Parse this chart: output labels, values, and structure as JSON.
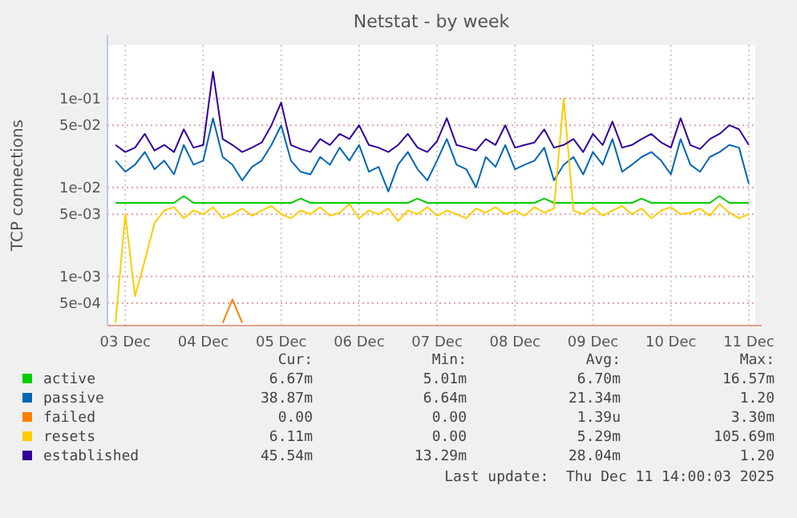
{
  "chart_data": {
    "type": "line",
    "title": "Netstat - by week",
    "ylabel": "TCP connections",
    "log": "y",
    "grid": true,
    "legend": "bottom",
    "marker": "none",
    "line_style": "solid",
    "ylim": [
      0.00028,
      0.4
    ],
    "yticks": [
      {
        "value": 0.0005,
        "label": "5e-04"
      },
      {
        "value": 0.001,
        "label": "1e-03"
      },
      {
        "value": 0.005,
        "label": "5e-03"
      },
      {
        "value": 0.01,
        "label": "1e-02"
      },
      {
        "value": 0.05,
        "label": "5e-02"
      },
      {
        "value": 0.1,
        "label": "1e-01"
      }
    ],
    "xlim": [
      "2025-12-03T06:30",
      "2025-12-11T14:00"
    ],
    "xticks": [
      {
        "value": "2025-12-03T12:00",
        "label": "03 Dec"
      },
      {
        "value": "2025-12-04T12:00",
        "label": "04 Dec"
      },
      {
        "value": "2025-12-05T12:00",
        "label": "05 Dec"
      },
      {
        "value": "2025-12-06T12:00",
        "label": "06 Dec"
      },
      {
        "value": "2025-12-07T12:00",
        "label": "07 Dec"
      },
      {
        "value": "2025-12-08T12:00",
        "label": "08 Dec"
      },
      {
        "value": "2025-12-09T12:00",
        "label": "09 Dec"
      },
      {
        "value": "2025-12-10T12:00",
        "label": "10 Dec"
      },
      {
        "value": "2025-12-11T12:00",
        "label": "11 Dec"
      }
    ],
    "x": [
      "2025-12-03T09:00",
      "2025-12-03T12:00",
      "2025-12-03T15:00",
      "2025-12-03T18:00",
      "2025-12-03T21:00",
      "2025-12-04T00:00",
      "2025-12-04T03:00",
      "2025-12-04T06:00",
      "2025-12-04T09:00",
      "2025-12-04T12:00",
      "2025-12-04T15:00",
      "2025-12-04T18:00",
      "2025-12-04T21:00",
      "2025-12-05T00:00",
      "2025-12-05T03:00",
      "2025-12-05T06:00",
      "2025-12-05T09:00",
      "2025-12-05T12:00",
      "2025-12-05T15:00",
      "2025-12-05T18:00",
      "2025-12-05T21:00",
      "2025-12-06T00:00",
      "2025-12-06T03:00",
      "2025-12-06T06:00",
      "2025-12-06T09:00",
      "2025-12-06T12:00",
      "2025-12-06T15:00",
      "2025-12-06T18:00",
      "2025-12-06T21:00",
      "2025-12-07T00:00",
      "2025-12-07T03:00",
      "2025-12-07T06:00",
      "2025-12-07T09:00",
      "2025-12-07T12:00",
      "2025-12-07T15:00",
      "2025-12-07T18:00",
      "2025-12-07T21:00",
      "2025-12-08T00:00",
      "2025-12-08T03:00",
      "2025-12-08T06:00",
      "2025-12-08T09:00",
      "2025-12-08T12:00",
      "2025-12-08T15:00",
      "2025-12-08T18:00",
      "2025-12-08T21:00",
      "2025-12-09T00:00",
      "2025-12-09T03:00",
      "2025-12-09T06:00",
      "2025-12-09T09:00",
      "2025-12-09T12:00",
      "2025-12-09T15:00",
      "2025-12-09T18:00",
      "2025-12-09T21:00",
      "2025-12-10T00:00",
      "2025-12-10T03:00",
      "2025-12-10T06:00",
      "2025-12-10T09:00",
      "2025-12-10T12:00",
      "2025-12-10T15:00",
      "2025-12-10T18:00",
      "2025-12-10T21:00",
      "2025-12-11T00:00",
      "2025-12-11T03:00",
      "2025-12-11T06:00",
      "2025-12-11T09:00",
      "2025-12-11T12:00"
    ],
    "series": [
      {
        "name": "active",
        "color": "#00cc00",
        "values": [
          0.0067,
          0.0067,
          0.0067,
          0.0067,
          0.0067,
          0.0067,
          0.0067,
          0.008,
          0.0067,
          0.0067,
          0.0067,
          0.0067,
          0.0067,
          0.0067,
          0.0067,
          0.0067,
          0.0067,
          0.0067,
          0.0067,
          0.0075,
          0.0067,
          0.0067,
          0.0067,
          0.0067,
          0.0067,
          0.0067,
          0.0067,
          0.0067,
          0.0067,
          0.0067,
          0.0067,
          0.0075,
          0.0067,
          0.0067,
          0.0067,
          0.0067,
          0.0067,
          0.0067,
          0.0067,
          0.0067,
          0.0067,
          0.0067,
          0.0067,
          0.0067,
          0.0075,
          0.0067,
          0.0067,
          0.0067,
          0.0067,
          0.0067,
          0.0067,
          0.0067,
          0.0067,
          0.0067,
          0.0075,
          0.0067,
          0.0067,
          0.0067,
          0.0067,
          0.0067,
          0.0067,
          0.0067,
          0.008,
          0.0067,
          0.0067,
          0.0067
        ]
      },
      {
        "name": "passive",
        "color": "#0066b3",
        "values": [
          0.02,
          0.015,
          0.018,
          0.025,
          0.016,
          0.02,
          0.014,
          0.03,
          0.018,
          0.02,
          0.06,
          0.022,
          0.018,
          0.012,
          0.017,
          0.02,
          0.03,
          0.05,
          0.02,
          0.015,
          0.014,
          0.022,
          0.018,
          0.028,
          0.02,
          0.03,
          0.015,
          0.017,
          0.009,
          0.018,
          0.025,
          0.016,
          0.012,
          0.02,
          0.035,
          0.018,
          0.016,
          0.01,
          0.022,
          0.017,
          0.03,
          0.016,
          0.018,
          0.02,
          0.028,
          0.012,
          0.018,
          0.022,
          0.014,
          0.025,
          0.018,
          0.035,
          0.015,
          0.018,
          0.022,
          0.025,
          0.02,
          0.014,
          0.035,
          0.018,
          0.015,
          0.022,
          0.025,
          0.03,
          0.028,
          0.011
        ]
      },
      {
        "name": "failed",
        "color": "#ff8000",
        "values": [
          null,
          null,
          null,
          null,
          null,
          null,
          null,
          null,
          null,
          null,
          null,
          0.0003,
          0.00055,
          0.0003,
          null,
          null,
          null,
          null,
          null,
          null,
          null,
          null,
          null,
          null,
          null,
          null,
          null,
          null,
          null,
          null,
          null,
          null,
          null,
          null,
          null,
          null,
          null,
          null,
          null,
          null,
          null,
          null,
          null,
          null,
          null,
          null,
          null,
          null,
          null,
          null,
          null,
          null,
          null,
          null,
          null,
          null,
          null,
          null,
          null,
          null,
          null,
          null,
          null,
          null,
          null,
          null
        ]
      },
      {
        "name": "resets",
        "color": "#ffcc00",
        "values": [
          0.0003,
          0.005,
          0.0006,
          0.0015,
          0.004,
          0.0055,
          0.006,
          0.0045,
          0.0055,
          0.005,
          0.006,
          0.0045,
          0.005,
          0.0058,
          0.0048,
          0.0055,
          0.0062,
          0.005,
          0.0045,
          0.0055,
          0.005,
          0.006,
          0.0048,
          0.0052,
          0.0065,
          0.0045,
          0.0055,
          0.005,
          0.0058,
          0.0042,
          0.0055,
          0.005,
          0.006,
          0.0048,
          0.0055,
          0.005,
          0.0045,
          0.0058,
          0.0052,
          0.006,
          0.005,
          0.0055,
          0.0048,
          0.006,
          0.0052,
          0.0058,
          0.1,
          0.0055,
          0.005,
          0.006,
          0.0048,
          0.0055,
          0.0062,
          0.005,
          0.0058,
          0.0045,
          0.0055,
          0.006,
          0.005,
          0.0052,
          0.0058,
          0.0048,
          0.0065,
          0.0052,
          0.0045,
          0.005
        ]
      },
      {
        "name": "established",
        "color": "#330099",
        "values": [
          0.03,
          0.025,
          0.028,
          0.04,
          0.026,
          0.03,
          0.025,
          0.045,
          0.028,
          0.03,
          0.2,
          0.035,
          0.03,
          0.025,
          0.028,
          0.032,
          0.05,
          0.09,
          0.03,
          0.027,
          0.025,
          0.035,
          0.03,
          0.04,
          0.035,
          0.05,
          0.03,
          0.028,
          0.025,
          0.03,
          0.04,
          0.028,
          0.025,
          0.033,
          0.06,
          0.03,
          0.028,
          0.026,
          0.035,
          0.03,
          0.05,
          0.028,
          0.03,
          0.032,
          0.045,
          0.028,
          0.03,
          0.035,
          0.025,
          0.04,
          0.03,
          0.055,
          0.028,
          0.03,
          0.035,
          0.04,
          0.032,
          0.028,
          0.06,
          0.03,
          0.027,
          0.035,
          0.04,
          0.05,
          0.045,
          0.03
        ]
      }
    ],
    "annotations": [
      "Cur:",
      "Min:",
      "Avg:",
      "Max:",
      "6.67m",
      "5.01m",
      "6.70m",
      "16.57m",
      "38.87m",
      "6.64m",
      "21.34m",
      "1.20",
      "0.00",
      "0.00",
      "1.39u",
      "3.30m",
      "6.11m",
      "0.00",
      "5.29m",
      "105.69m",
      "45.54m",
      "13.29m",
      "28.04m",
      "1.20",
      "Last update:  Thu Dec 11 14:00:03 2025"
    ]
  }
}
